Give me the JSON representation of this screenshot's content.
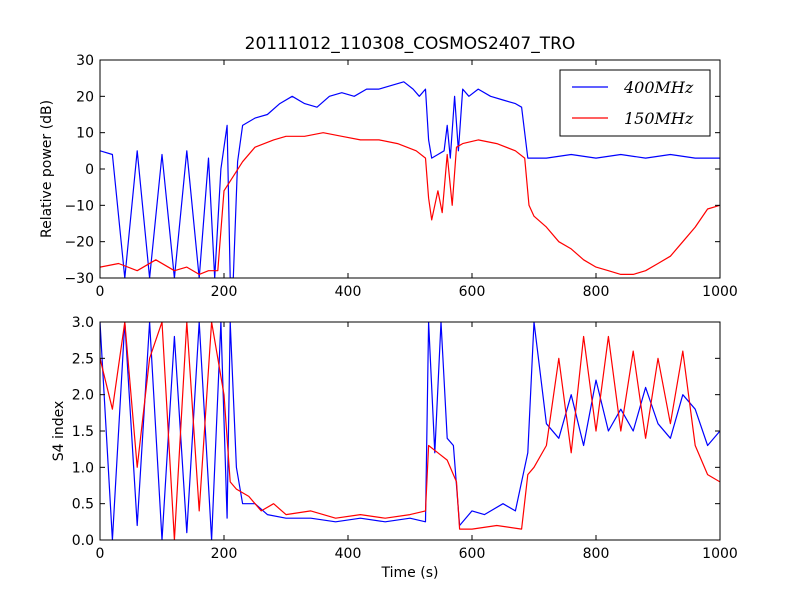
{
  "chart_data": [
    {
      "type": "line",
      "title": "20111012_110308_COSMOS2407_TRO",
      "xlabel": "",
      "ylabel": "Relative power (dB)",
      "xlim": [
        0,
        1000
      ],
      "ylim": [
        -30,
        30
      ],
      "xticks": [
        0,
        200,
        400,
        600,
        800,
        1000
      ],
      "yticks": [
        -30,
        -20,
        -10,
        0,
        10,
        20,
        30
      ],
      "xtick_labels": [
        "0",
        "200",
        "400",
        "600",
        "800",
        "1000"
      ],
      "ytick_labels": [
        "−30",
        "−20",
        "−10",
        "0",
        "10",
        "20",
        "30"
      ],
      "legend": {
        "placement": "top-right",
        "entries": [
          "400MHz",
          "150MHz"
        ]
      },
      "grid": false,
      "series": [
        {
          "name": "400MHz",
          "color": "#0000ff",
          "points": [
            [
              0,
              5
            ],
            [
              20,
              4
            ],
            [
              40,
              -30
            ],
            [
              60,
              5
            ],
            [
              80,
              -30
            ],
            [
              100,
              4
            ],
            [
              120,
              -30
            ],
            [
              140,
              5
            ],
            [
              160,
              -30
            ],
            [
              175,
              3
            ],
            [
              185,
              -30
            ],
            [
              195,
              0
            ],
            [
              205,
              12
            ],
            [
              210,
              -30
            ],
            [
              215,
              -30
            ],
            [
              222,
              2
            ],
            [
              230,
              12
            ],
            [
              250,
              14
            ],
            [
              270,
              15
            ],
            [
              290,
              18
            ],
            [
              310,
              20
            ],
            [
              330,
              18
            ],
            [
              350,
              17
            ],
            [
              370,
              20
            ],
            [
              390,
              21
            ],
            [
              410,
              20
            ],
            [
              430,
              22
            ],
            [
              450,
              22
            ],
            [
              470,
              23
            ],
            [
              490,
              24
            ],
            [
              505,
              22
            ],
            [
              515,
              20
            ],
            [
              525,
              22
            ],
            [
              530,
              8
            ],
            [
              535,
              3
            ],
            [
              545,
              4
            ],
            [
              555,
              5
            ],
            [
              560,
              12
            ],
            [
              565,
              3
            ],
            [
              572,
              20
            ],
            [
              578,
              5
            ],
            [
              585,
              22
            ],
            [
              595,
              20
            ],
            [
              610,
              22
            ],
            [
              630,
              20
            ],
            [
              650,
              19
            ],
            [
              670,
              18
            ],
            [
              680,
              17
            ],
            [
              690,
              3
            ],
            [
              720,
              3
            ],
            [
              760,
              4
            ],
            [
              800,
              3
            ],
            [
              840,
              4
            ],
            [
              880,
              3
            ],
            [
              920,
              4
            ],
            [
              960,
              3
            ],
            [
              1000,
              3
            ]
          ]
        },
        {
          "name": "150MHz",
          "color": "#ff0000",
          "points": [
            [
              0,
              -27
            ],
            [
              30,
              -26
            ],
            [
              60,
              -28
            ],
            [
              90,
              -25
            ],
            [
              120,
              -28
            ],
            [
              140,
              -27
            ],
            [
              160,
              -29
            ],
            [
              175,
              -28
            ],
            [
              190,
              -28
            ],
            [
              200,
              -6
            ],
            [
              215,
              -2
            ],
            [
              230,
              2
            ],
            [
              250,
              6
            ],
            [
              280,
              8
            ],
            [
              300,
              9
            ],
            [
              330,
              9
            ],
            [
              360,
              10
            ],
            [
              390,
              9
            ],
            [
              420,
              8
            ],
            [
              450,
              8
            ],
            [
              480,
              7
            ],
            [
              510,
              5
            ],
            [
              525,
              3
            ],
            [
              530,
              -8
            ],
            [
              535,
              -14
            ],
            [
              545,
              -6
            ],
            [
              552,
              -12
            ],
            [
              560,
              4
            ],
            [
              568,
              -10
            ],
            [
              575,
              6
            ],
            [
              585,
              7
            ],
            [
              610,
              8
            ],
            [
              640,
              7
            ],
            [
              670,
              5
            ],
            [
              685,
              3
            ],
            [
              692,
              -10
            ],
            [
              700,
              -13
            ],
            [
              720,
              -16
            ],
            [
              740,
              -20
            ],
            [
              760,
              -22
            ],
            [
              780,
              -25
            ],
            [
              800,
              -27
            ],
            [
              820,
              -28
            ],
            [
              840,
              -29
            ],
            [
              860,
              -29
            ],
            [
              880,
              -28
            ],
            [
              900,
              -26
            ],
            [
              920,
              -24
            ],
            [
              940,
              -20
            ],
            [
              960,
              -16
            ],
            [
              980,
              -11
            ],
            [
              1000,
              -10
            ]
          ]
        }
      ]
    },
    {
      "type": "line",
      "title": "",
      "xlabel": "Time (s)",
      "ylabel": "S4 index",
      "xlim": [
        0,
        1000
      ],
      "ylim": [
        0,
        3
      ],
      "xticks": [
        0,
        200,
        400,
        600,
        800,
        1000
      ],
      "yticks": [
        0,
        0.5,
        1,
        1.5,
        2,
        2.5,
        3
      ],
      "xtick_labels": [
        "0",
        "200",
        "400",
        "600",
        "800",
        "1000"
      ],
      "ytick_labels": [
        "0.0",
        "0.5",
        "1.0",
        "1.5",
        "2.0",
        "2.5",
        "3.0"
      ],
      "grid": false,
      "series": [
        {
          "name": "400MHz",
          "color": "#0000ff",
          "points": [
            [
              0,
              3
            ],
            [
              20,
              0
            ],
            [
              40,
              3
            ],
            [
              60,
              0.2
            ],
            [
              80,
              3
            ],
            [
              100,
              0
            ],
            [
              120,
              2.8
            ],
            [
              140,
              0.1
            ],
            [
              160,
              3
            ],
            [
              180,
              0
            ],
            [
              195,
              3
            ],
            [
              205,
              0.3
            ],
            [
              210,
              3
            ],
            [
              220,
              1
            ],
            [
              230,
              0.5
            ],
            [
              250,
              0.5
            ],
            [
              270,
              0.35
            ],
            [
              300,
              0.3
            ],
            [
              340,
              0.3
            ],
            [
              380,
              0.25
            ],
            [
              420,
              0.3
            ],
            [
              460,
              0.25
            ],
            [
              500,
              0.3
            ],
            [
              525,
              0.25
            ],
            [
              530,
              3
            ],
            [
              540,
              1.2
            ],
            [
              550,
              3
            ],
            [
              560,
              1.4
            ],
            [
              570,
              1.3
            ],
            [
              580,
              0.2
            ],
            [
              600,
              0.4
            ],
            [
              620,
              0.35
            ],
            [
              650,
              0.5
            ],
            [
              670,
              0.4
            ],
            [
              690,
              1.2
            ],
            [
              700,
              3
            ],
            [
              720,
              1.6
            ],
            [
              740,
              1.4
            ],
            [
              760,
              2
            ],
            [
              780,
              1.3
            ],
            [
              800,
              2.2
            ],
            [
              820,
              1.5
            ],
            [
              840,
              1.8
            ],
            [
              860,
              1.5
            ],
            [
              880,
              2.1
            ],
            [
              900,
              1.6
            ],
            [
              920,
              1.4
            ],
            [
              940,
              2
            ],
            [
              960,
              1.8
            ],
            [
              980,
              1.3
            ],
            [
              1000,
              1.5
            ]
          ]
        },
        {
          "name": "150MHz",
          "color": "#ff0000",
          "points": [
            [
              0,
              2.5
            ],
            [
              20,
              1.8
            ],
            [
              40,
              3
            ],
            [
              60,
              1
            ],
            [
              80,
              2.5
            ],
            [
              100,
              3
            ],
            [
              120,
              0
            ],
            [
              140,
              3
            ],
            [
              160,
              0.4
            ],
            [
              180,
              3
            ],
            [
              200,
              2
            ],
            [
              210,
              0.8
            ],
            [
              220,
              0.7
            ],
            [
              240,
              0.6
            ],
            [
              260,
              0.4
            ],
            [
              280,
              0.5
            ],
            [
              300,
              0.35
            ],
            [
              340,
              0.4
            ],
            [
              380,
              0.3
            ],
            [
              420,
              0.35
            ],
            [
              460,
              0.3
            ],
            [
              500,
              0.35
            ],
            [
              525,
              0.4
            ],
            [
              530,
              1.3
            ],
            [
              545,
              1.2
            ],
            [
              560,
              1.1
            ],
            [
              575,
              0.8
            ],
            [
              580,
              0.15
            ],
            [
              600,
              0.15
            ],
            [
              640,
              0.2
            ],
            [
              680,
              0.15
            ],
            [
              690,
              0.9
            ],
            [
              700,
              1
            ],
            [
              720,
              1.3
            ],
            [
              740,
              2.5
            ],
            [
              760,
              1.2
            ],
            [
              780,
              2.8
            ],
            [
              800,
              1.5
            ],
            [
              820,
              2.8
            ],
            [
              840,
              1.5
            ],
            [
              860,
              2.6
            ],
            [
              880,
              1.4
            ],
            [
              900,
              2.5
            ],
            [
              920,
              1.6
            ],
            [
              940,
              2.6
            ],
            [
              960,
              1.3
            ],
            [
              980,
              0.9
            ],
            [
              1000,
              0.8
            ]
          ]
        }
      ]
    }
  ]
}
